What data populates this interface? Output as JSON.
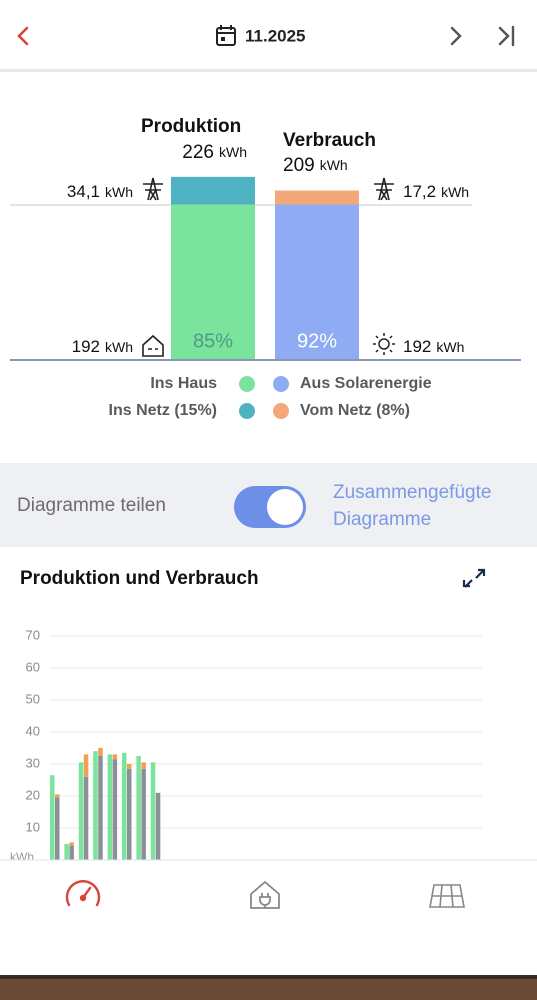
{
  "header": {
    "title": "11.2025"
  },
  "summary": {
    "production": {
      "label": "Produktion",
      "total": 226,
      "unit": "kWh",
      "house": 192,
      "grid": {
        "value": 34.1,
        "label": "34,1"
      },
      "share": "85%"
    },
    "consumption": {
      "label": "Verbrauch",
      "total": 209,
      "unit": "kWh",
      "solar": 192,
      "grid": {
        "value": 17.2,
        "label": "17,2"
      },
      "share": "92%"
    },
    "legend": [
      "Ins Haus",
      "Aus Solarenergie",
      "Ins Netz (15%)",
      "Vom Netz (8%)"
    ],
    "colors": {
      "house": "#7ae39c",
      "solar": "#8eabf4",
      "feed": "#4fb2c2",
      "grid": "#f2a878"
    }
  },
  "toggle": {
    "label": "Diagramme teilen",
    "option_lines": [
      "Zusammengefügte",
      "Diagramme"
    ],
    "on": true
  },
  "chart_data": {
    "type": "bar",
    "title": "Produktion und Verbrauch",
    "y_unit": "kWh",
    "categories": [
      null,
      null,
      null,
      null,
      null,
      null,
      null,
      null,
      null,
      null,
      null,
      null,
      null,
      null,
      null,
      null,
      null,
      null,
      null,
      null,
      null,
      null,
      null,
      null,
      null,
      null,
      null,
      null,
      null,
      null
    ],
    "series": [
      {
        "name": "Produktion",
        "color": "#7ae39c",
        "values": [
          26.5,
          5,
          30.5,
          34,
          33,
          33.5,
          32.5,
          30.5,
          null,
          null,
          null,
          null,
          null,
          null,
          null,
          null,
          null,
          null,
          null,
          null,
          null,
          null,
          null,
          null,
          null,
          null,
          null,
          null,
          null,
          null
        ]
      },
      {
        "name": "Aus Solarenergie",
        "color": "#8a8f98",
        "stack": "c",
        "values": [
          19.5,
          4.5,
          26,
          32.5,
          31.5,
          28.5,
          28.5,
          21,
          null,
          null,
          null,
          null,
          null,
          null,
          null,
          null,
          null,
          null,
          null,
          null,
          null,
          null,
          null,
          null,
          null,
          null,
          null,
          null,
          null,
          null
        ]
      },
      {
        "name": "Vom Netz",
        "color": "#f0a050",
        "stack": "c",
        "values": [
          1,
          1,
          7,
          2.5,
          1.5,
          1.5,
          2,
          0,
          null,
          null,
          null,
          null,
          null,
          null,
          null,
          null,
          null,
          null,
          null,
          null,
          null,
          null,
          null,
          null,
          null,
          null,
          null,
          null,
          null,
          null
        ]
      }
    ],
    "ylim": [
      0,
      70
    ],
    "yticks": [
      10,
      20,
      30,
      40,
      50,
      60,
      70
    ],
    "grid": true
  }
}
